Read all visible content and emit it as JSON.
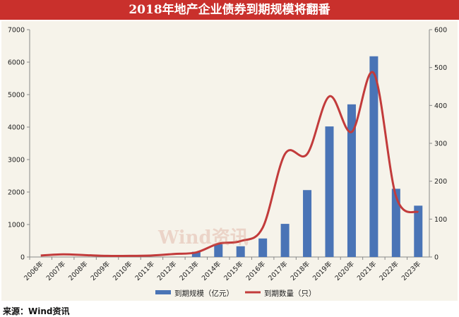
{
  "title": "2018年地产企业债券到期规模将翻番",
  "watermark": "Wind资讯",
  "source": "来源：Wind资讯",
  "colors": {
    "title_bg": "#c9302c",
    "bar": "#4a74b6",
    "line": "#c23b3b",
    "plot_bg": "#f6f3ea"
  },
  "chart_data": {
    "type": "bar",
    "categories": [
      "2006年",
      "2007年",
      "2008年",
      "2009年",
      "2010年",
      "2011年",
      "2012年",
      "2013年",
      "2014年",
      "2015年",
      "2016年",
      "2017年",
      "2018年",
      "2019年",
      "2020年",
      "2021年",
      "2022年",
      "2023年"
    ],
    "series": [
      {
        "name": "到期规模（亿元）",
        "type": "bar",
        "axis": "left",
        "values": [
          0,
          0,
          0,
          0,
          0,
          0,
          0,
          160,
          390,
          330,
          570,
          1020,
          2060,
          4020,
          4700,
          6180,
          2100,
          1580
        ]
      },
      {
        "name": "到期数量（只）",
        "type": "line",
        "axis": "right",
        "values": [
          4,
          7,
          5,
          3,
          3,
          4,
          8,
          12,
          35,
          42,
          78,
          272,
          272,
          424,
          330,
          485,
          160,
          118
        ]
      }
    ],
    "left_axis": {
      "min": 0,
      "max": 7000,
      "ticks": [
        "0",
        "1000",
        "2000",
        "3000",
        "4000",
        "5000",
        "6000",
        "7000"
      ]
    },
    "right_axis": {
      "min": 0,
      "max": 600,
      "ticks": [
        "0",
        "100",
        "200",
        "300",
        "400",
        "500",
        "600"
      ]
    },
    "legend_position": "bottom",
    "grid": false
  }
}
